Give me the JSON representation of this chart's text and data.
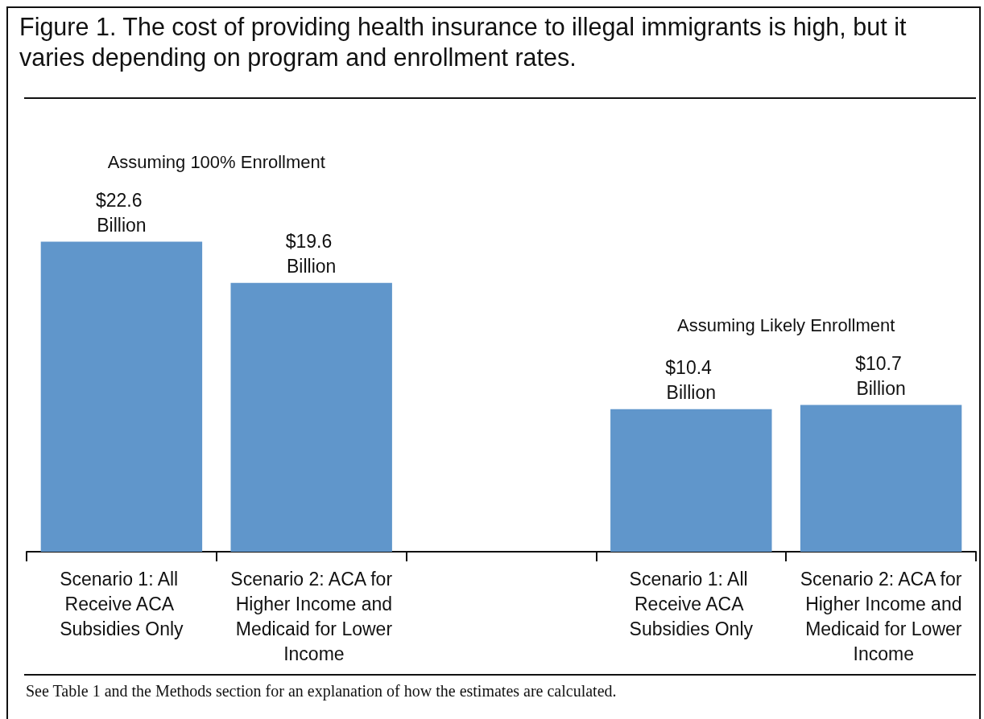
{
  "chart_data": {
    "type": "bar",
    "title": "Figure 1. The cost of providing health insurance to illegal immigrants is high, but it varies depending on program and enrollment rates.",
    "categories": [
      "Scenario 1: All Receive ACA Subsidies Only",
      "Scenario 2: ACA for Higher Income and Medicaid for Lower Income",
      null,
      "Scenario 1: All Receive ACA Subsidies Only",
      "Scenario 2: ACA for Higher Income and Medicaid for Lower Income"
    ],
    "values": [
      22.6,
      19.6,
      null,
      10.4,
      10.7
    ],
    "value_labels": [
      "$22.6 Billion",
      "$19.6 Billion",
      null,
      "$10.4 Billion",
      "$10.7 Billion"
    ],
    "color": "#6096cb",
    "grid": false,
    "annotations": [
      "Assuming 100% Enrollment",
      "Assuming Likely Enrollment",
      "See Table 1 and the Methods section for an explanation of how the estimates are calculated."
    ]
  }
}
